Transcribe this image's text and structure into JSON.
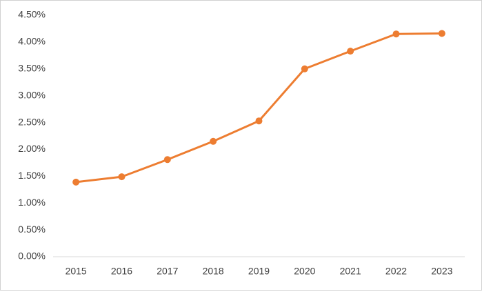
{
  "chart_data": {
    "type": "line",
    "categories": [
      "2015",
      "2016",
      "2017",
      "2018",
      "2019",
      "2020",
      "2021",
      "2022",
      "2023"
    ],
    "series": [
      {
        "color": "#ed7d31",
        "values": [
          1.39,
          1.49,
          1.81,
          2.15,
          2.53,
          3.5,
          3.83,
          4.15,
          4.16
        ]
      }
    ],
    "ylim": [
      0,
      4.5
    ],
    "yticks": [
      {
        "value": 0,
        "label": "0.00%"
      },
      {
        "value": 0.5,
        "label": "0.50%"
      },
      {
        "value": 1,
        "label": "1.00%"
      },
      {
        "value": 1.5,
        "label": "1.50%"
      },
      {
        "value": 2,
        "label": "2.00%"
      },
      {
        "value": 2.5,
        "label": "2.50%"
      },
      {
        "value": 3,
        "label": "3.00%"
      },
      {
        "value": 3.5,
        "label": "3.50%"
      },
      {
        "value": 4,
        "label": "4.00%"
      },
      {
        "value": 4.5,
        "label": "4.50%"
      }
    ],
    "grid": false
  }
}
